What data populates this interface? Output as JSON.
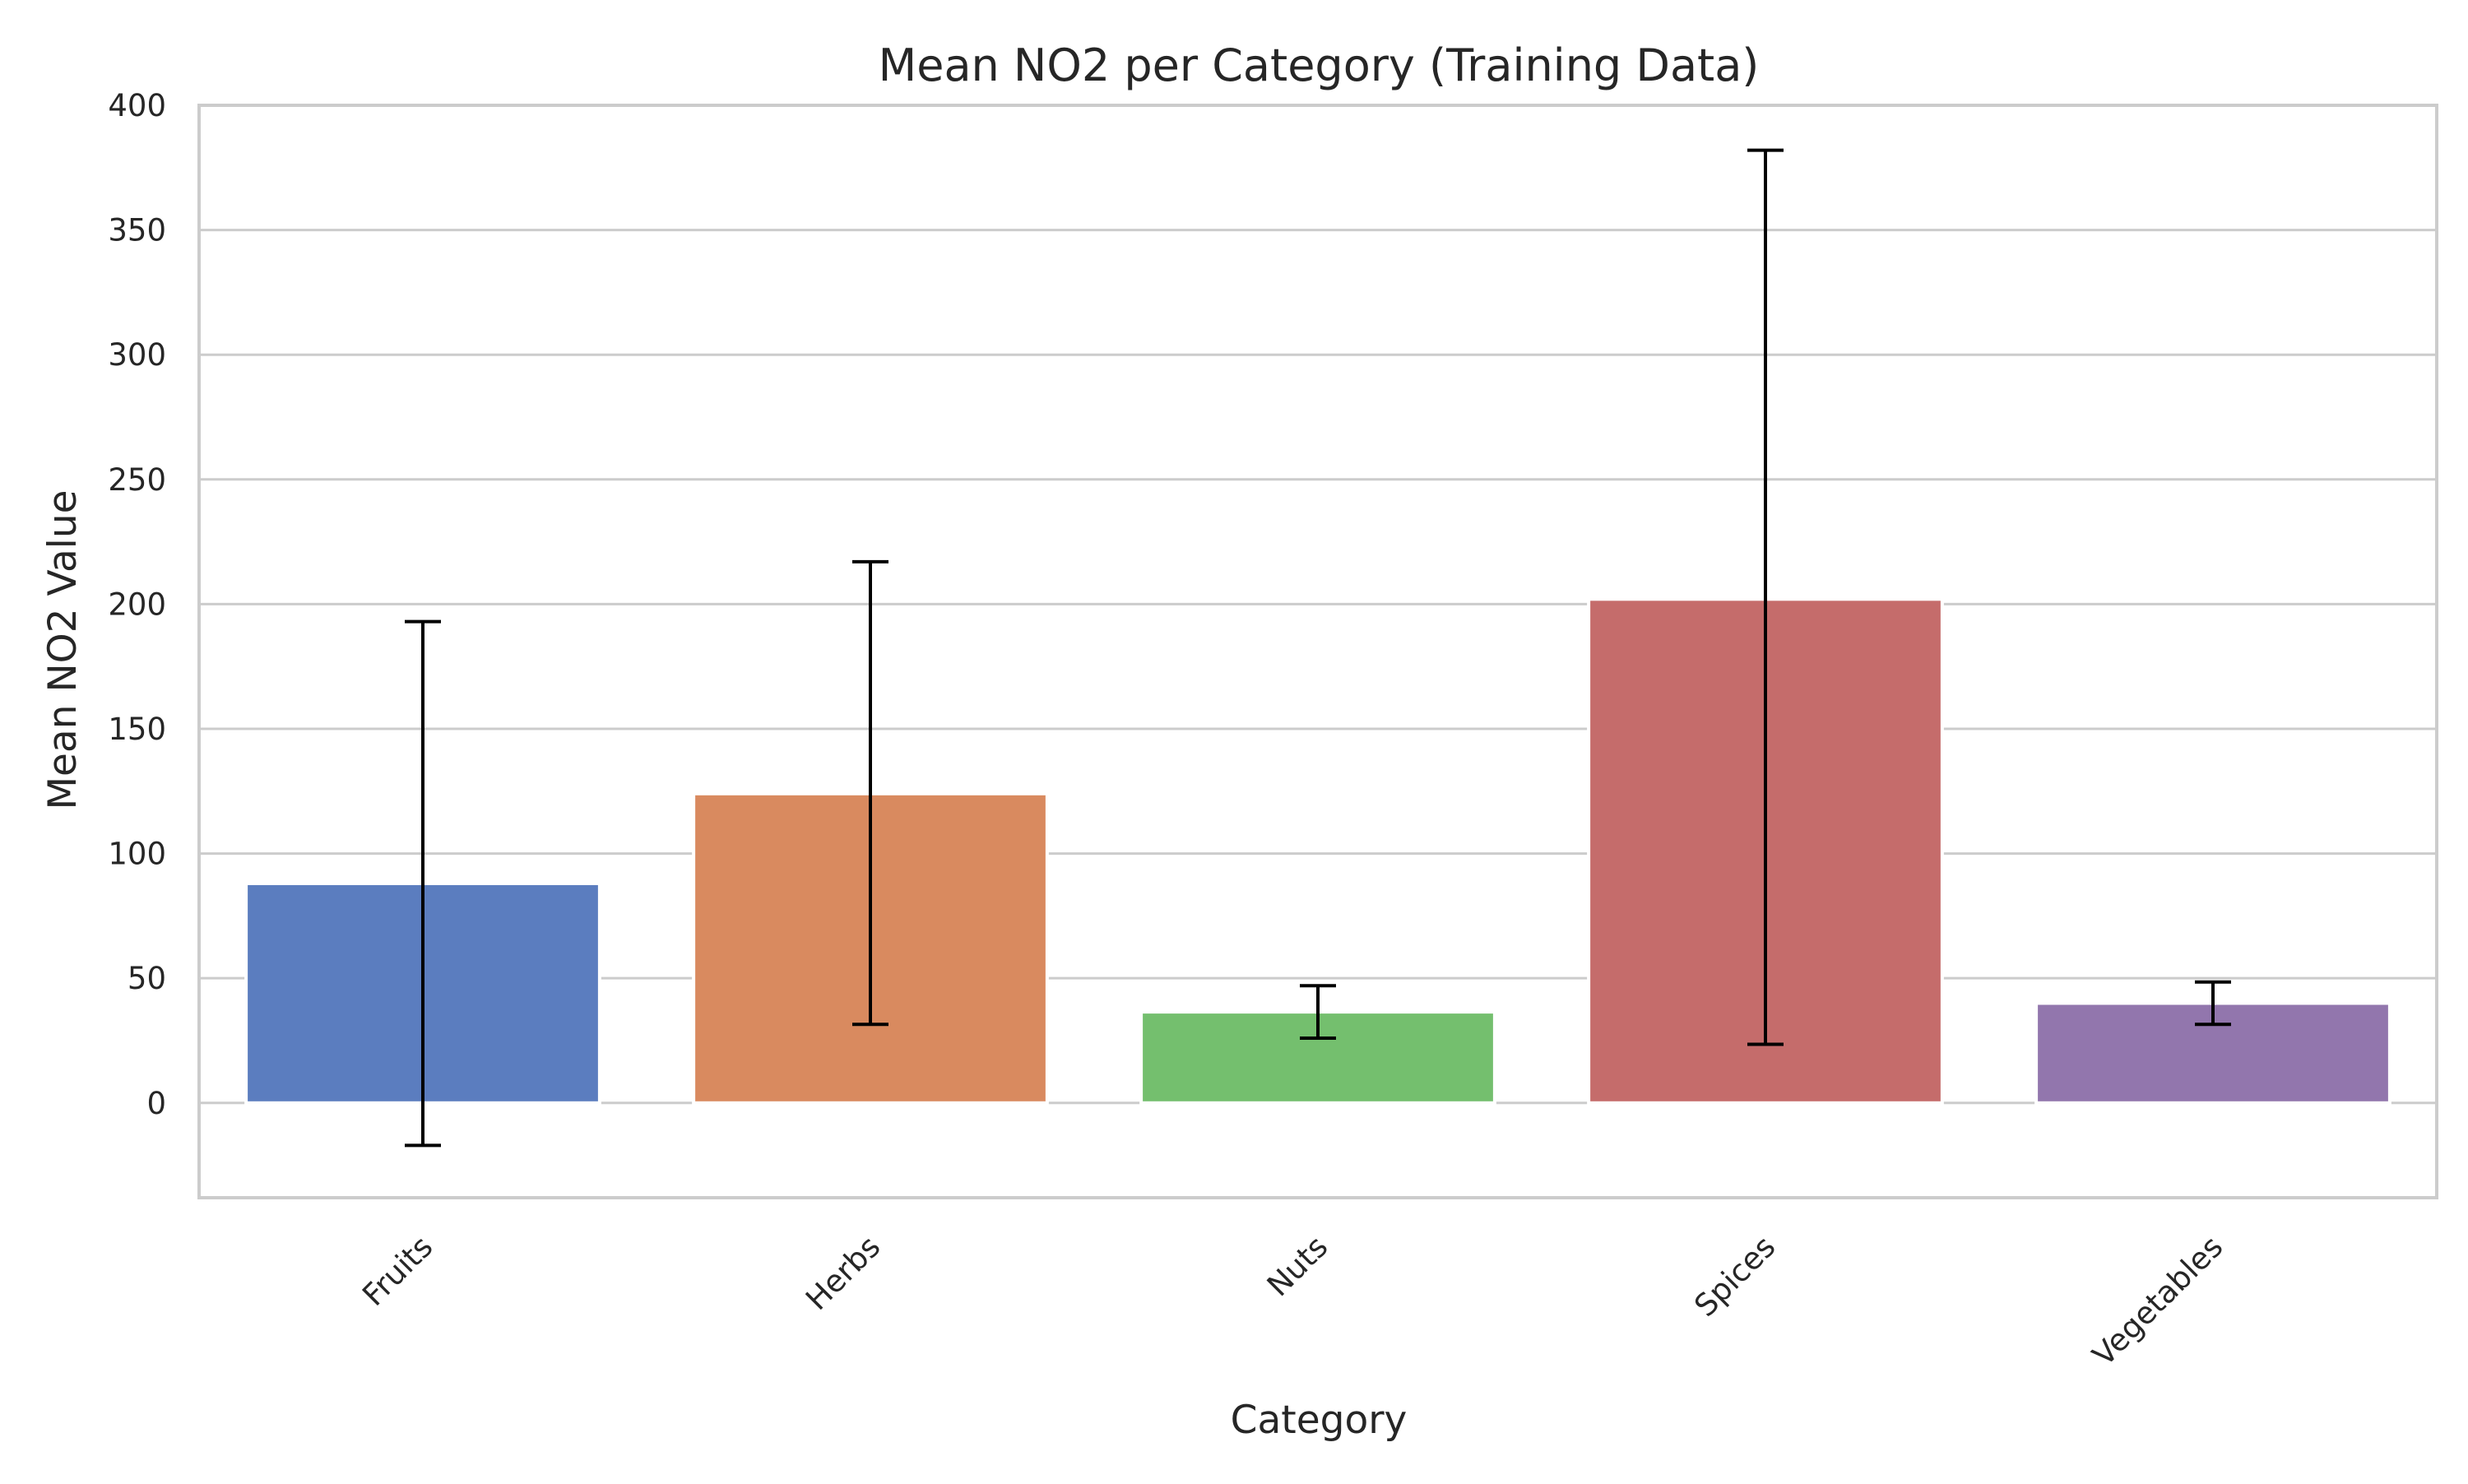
{
  "chart_data": {
    "type": "bar",
    "title": "Mean NO2 per Category (Training Data)",
    "xlabel": "Category",
    "ylabel": "Mean NO2 Value",
    "categories": [
      "Fruits",
      "Herbs",
      "Nuts",
      "Spices",
      "Vegetables"
    ],
    "values": [
      88,
      124,
      36.5,
      202,
      40
    ],
    "error_bars": [
      {
        "low": -17,
        "high": 193
      },
      {
        "low": 31.5,
        "high": 217
      },
      {
        "low": 26,
        "high": 47
      },
      {
        "low": 23.5,
        "high": 382
      },
      {
        "low": 31.5,
        "high": 48.5
      }
    ],
    "colors": [
      "#5b7dbf",
      "#d98a5f",
      "#74bf6e",
      "#c56c6b",
      "#9276ad"
    ],
    "ylim": [
      -38,
      400
    ],
    "yticks": [
      0,
      50,
      100,
      150,
      200,
      250,
      300,
      350,
      400
    ],
    "grid": true,
    "legend": "none"
  }
}
